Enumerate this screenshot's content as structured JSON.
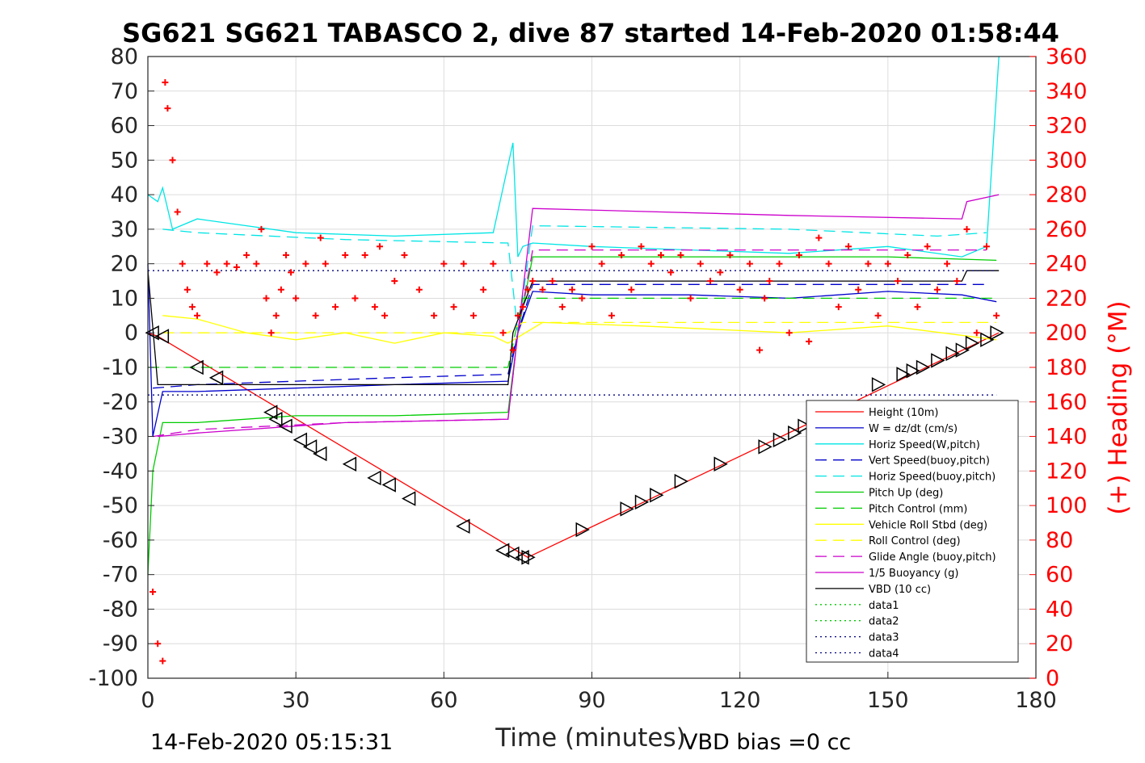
{
  "chart_data": {
    "type": "line",
    "title": "SG621 SG621 TABASCO 2, dive 87 started 14-Feb-2020 01:58:44",
    "xlabel": "Time (minutes)",
    "ylabel_left": "",
    "ylabel_right": "(+) Heading (°M)",
    "xlim": [
      0,
      180
    ],
    "ylim_left": [
      -100,
      80
    ],
    "ylim_right": [
      0,
      360
    ],
    "xticks": [
      "0",
      "30",
      "60",
      "90",
      "120",
      "150",
      "180"
    ],
    "yticks_left": [
      "80",
      "70",
      "60",
      "50",
      "40",
      "30",
      "20",
      "10",
      "0",
      "-10",
      "-20",
      "-30",
      "-40",
      "-50",
      "-60",
      "-70",
      "-80",
      "-90",
      "-100"
    ],
    "yticks_right": [
      "360",
      "340",
      "320",
      "300",
      "280",
      "260",
      "240",
      "220",
      "200",
      "180",
      "160",
      "140",
      "120",
      "100",
      "80",
      "60",
      "40",
      "20",
      "0"
    ],
    "grid": true,
    "legend_position": "lower-right",
    "footer_left": "14-Feb-2020 05:15:31",
    "footer_right": "VBD bias =0 cc",
    "series": [
      {
        "name": "Height (10m)",
        "color": "#ff0000",
        "style": "solid",
        "x": [
          0,
          2,
          77,
          172.5
        ],
        "y": [
          0,
          -1,
          -65,
          0
        ]
      },
      {
        "name": "W = dz/dt (cm/s)",
        "color": "#0000cc",
        "style": "solid",
        "x": [
          0,
          1,
          3,
          10,
          30,
          50,
          73,
          75,
          78,
          90,
          110,
          130,
          150,
          165,
          172
        ],
        "y": [
          20,
          -30,
          -17,
          -17,
          -16,
          -15,
          -14,
          0,
          12,
          11,
          11,
          10,
          12,
          11,
          9
        ]
      },
      {
        "name": "Horiz Speed(W,pitch)",
        "color": "#00e5e5",
        "style": "solid",
        "x": [
          0,
          2,
          3,
          5,
          10,
          20,
          30,
          50,
          70,
          74,
          75,
          76,
          78,
          90,
          110,
          130,
          150,
          165,
          170,
          172.5
        ],
        "y": [
          40,
          38,
          42,
          30,
          33,
          31,
          29,
          28,
          29,
          55,
          22,
          25,
          26,
          25,
          24,
          23,
          25,
          22,
          25,
          80
        ]
      },
      {
        "name": "Vert Speed(buoy,pitch)",
        "color": "#0000cc",
        "style": "dash",
        "x": [
          1,
          10,
          30,
          50,
          73,
          75,
          78,
          170
        ],
        "y": [
          -16,
          -15,
          -14,
          -13,
          -12,
          0,
          14,
          14
        ]
      },
      {
        "name": "Horiz Speed(buoy,pitch)",
        "color": "#00e5e5",
        "style": "dash",
        "x": [
          3,
          10,
          40,
          73,
          75,
          78,
          130,
          160,
          170
        ],
        "y": [
          30,
          29,
          27,
          26,
          0,
          31,
          30,
          28,
          29
        ]
      },
      {
        "name": "Pitch Up (deg)",
        "color": "#00cc00",
        "style": "solid",
        "x": [
          0,
          1,
          3,
          10,
          30,
          50,
          73,
          75,
          78,
          110,
          150,
          172
        ],
        "y": [
          -70,
          -40,
          -26,
          -26,
          -24,
          -24,
          -23,
          0,
          22,
          22,
          22,
          21
        ]
      },
      {
        "name": "Pitch Control (mm)",
        "color": "#00cc00",
        "style": "dash",
        "x": [
          0,
          73,
          76,
          172
        ],
        "y": [
          -10,
          -10,
          10,
          10
        ]
      },
      {
        "name": "Vehicle Roll Stbd (deg)",
        "color": "#ffff00",
        "style": "solid",
        "x": [
          3,
          10,
          20,
          30,
          40,
          50,
          60,
          70,
          73,
          80,
          100,
          130,
          150,
          172
        ],
        "y": [
          5,
          4,
          0,
          -2,
          0,
          -3,
          0,
          -1,
          -3,
          3,
          2,
          0,
          2,
          -2
        ]
      },
      {
        "name": "Roll Control (deg)",
        "color": "#ffff00",
        "style": "dash",
        "x": [
          3,
          73,
          76,
          172
        ],
        "y": [
          0,
          0,
          3,
          3
        ]
      },
      {
        "name": "Glide Angle (buoy,pitch)",
        "color": "#cc00cc",
        "style": "dash",
        "x": [
          1,
          10,
          40,
          73,
          75,
          78,
          130,
          170
        ],
        "y": [
          -30,
          -28,
          -26,
          -25,
          0,
          24,
          24,
          24
        ]
      },
      {
        "name": "1/5 Buoyancy (g)",
        "color": "#cc00cc",
        "style": "solid",
        "x": [
          2,
          10,
          40,
          73,
          75,
          78,
          130,
          165,
          166,
          172.5
        ],
        "y": [
          -30,
          -29,
          -26,
          -25,
          0,
          36,
          34,
          33,
          38,
          40
        ]
      },
      {
        "name": "VBD (10 cc)",
        "color": "#000000",
        "style": "solid",
        "x": [
          0,
          2,
          73,
          74,
          78,
          165,
          166,
          172.5
        ],
        "y": [
          18,
          -15,
          -15,
          0,
          15,
          15,
          18,
          18
        ]
      },
      {
        "name": "data1",
        "color": "#00cc00",
        "style": "dot",
        "x": [],
        "y": []
      },
      {
        "name": "data2",
        "color": "#00cc00",
        "style": "dot",
        "x": [],
        "y": []
      },
      {
        "name": "data3",
        "color": "#000080",
        "style": "dot",
        "x": [
          0,
          172
        ],
        "y": [
          18,
          18
        ]
      },
      {
        "name": "data4",
        "color": "#000080",
        "style": "dot",
        "x": [
          0,
          172
        ],
        "y": [
          -18,
          -18
        ]
      }
    ],
    "heading_series": {
      "name": "Heading",
      "axis": "right",
      "color": "#ff0000",
      "marker": "+",
      "x": [
        1,
        2,
        3,
        3.5,
        4,
        5,
        6,
        7,
        8,
        9,
        10,
        12,
        14,
        16,
        18,
        20,
        22,
        23,
        24,
        25,
        26,
        27,
        28,
        29,
        30,
        32,
        34,
        35,
        36,
        38,
        40,
        42,
        44,
        46,
        47,
        48,
        50,
        52,
        55,
        58,
        60,
        62,
        64,
        66,
        68,
        70,
        72,
        74,
        75,
        76,
        77,
        78,
        80,
        82,
        84,
        86,
        88,
        90,
        92,
        94,
        96,
        98,
        100,
        102,
        104,
        106,
        108,
        110,
        112,
        114,
        116,
        118,
        120,
        122,
        124,
        125,
        126,
        128,
        130,
        132,
        134,
        136,
        138,
        140,
        142,
        144,
        146,
        148,
        150,
        152,
        154,
        156,
        158,
        160,
        162,
        164,
        166,
        168,
        170,
        172
      ],
      "y": [
        50,
        20,
        10,
        345,
        330,
        300,
        270,
        240,
        225,
        215,
        210,
        240,
        235,
        240,
        238,
        245,
        240,
        260,
        220,
        200,
        210,
        225,
        245,
        235,
        220,
        240,
        210,
        255,
        240,
        215,
        245,
        220,
        245,
        215,
        250,
        210,
        230,
        245,
        225,
        210,
        240,
        215,
        240,
        210,
        225,
        240,
        200,
        190,
        210,
        215,
        225,
        230,
        225,
        230,
        215,
        225,
        220,
        250,
        240,
        210,
        245,
        225,
        250,
        240,
        245,
        235,
        245,
        220,
        240,
        230,
        235,
        245,
        225,
        240,
        190,
        220,
        230,
        240,
        200,
        245,
        195,
        255,
        240,
        215,
        250,
        225,
        240,
        210,
        240,
        230,
        245,
        215,
        250,
        225,
        240,
        230,
        260,
        200,
        250,
        210
      ]
    },
    "depth_markers": {
      "dive_marker": "triangle-left",
      "climb_marker": "triangle-right",
      "x": [
        1,
        3,
        10,
        14,
        25,
        26,
        28,
        31,
        33,
        35,
        41,
        46,
        49,
        53,
        64,
        72,
        74,
        76,
        77,
        88,
        97,
        100,
        103,
        108,
        116,
        125,
        128,
        131,
        133,
        138,
        148,
        153,
        155,
        157,
        160,
        163,
        165,
        167,
        170,
        172
      ],
      "y": [
        0,
        -1,
        -10,
        -13,
        -23,
        -25,
        -27,
        -31,
        -33,
        -35,
        -38,
        -42,
        -44,
        -48,
        -56,
        -63,
        -64,
        -65,
        -65,
        -57,
        -51,
        -49,
        -47,
        -43,
        -38,
        -33,
        -31,
        -29,
        -27,
        -22,
        -15,
        -12,
        -11,
        -10,
        -8,
        -6,
        -5,
        -3,
        -2,
        0
      ]
    }
  }
}
